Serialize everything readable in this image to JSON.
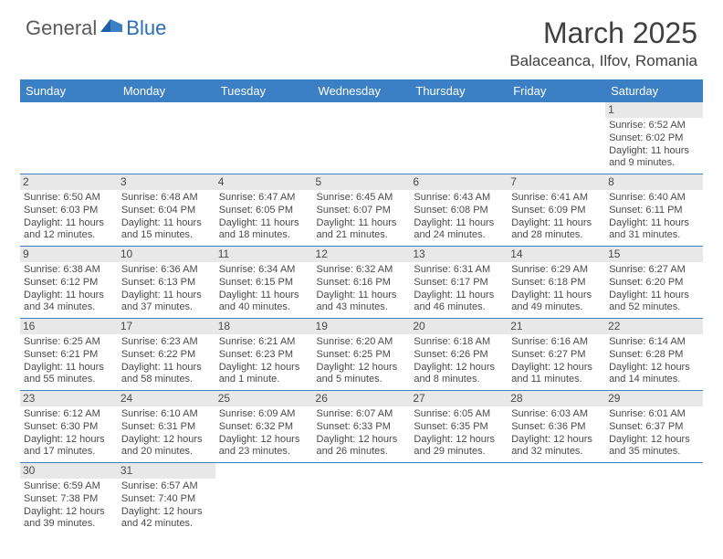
{
  "logo": {
    "general": "General",
    "blue": "Blue"
  },
  "title": "March 2025",
  "location": "Balaceanca, Ilfov, Romania",
  "header_bg": "#3b7fc4",
  "header_fg": "#ffffff",
  "divider_color": "#3b7fc4",
  "daynum_bg": "#e8e8e8",
  "text_color": "#4a4a4a",
  "days": [
    "Sunday",
    "Monday",
    "Tuesday",
    "Wednesday",
    "Thursday",
    "Friday",
    "Saturday"
  ],
  "weeks": [
    [
      null,
      null,
      null,
      null,
      null,
      null,
      {
        "n": "1",
        "sr": "Sunrise: 6:52 AM",
        "ss": "Sunset: 6:02 PM",
        "d1": "Daylight: 11 hours",
        "d2": "and 9 minutes."
      }
    ],
    [
      {
        "n": "2",
        "sr": "Sunrise: 6:50 AM",
        "ss": "Sunset: 6:03 PM",
        "d1": "Daylight: 11 hours",
        "d2": "and 12 minutes."
      },
      {
        "n": "3",
        "sr": "Sunrise: 6:48 AM",
        "ss": "Sunset: 6:04 PM",
        "d1": "Daylight: 11 hours",
        "d2": "and 15 minutes."
      },
      {
        "n": "4",
        "sr": "Sunrise: 6:47 AM",
        "ss": "Sunset: 6:05 PM",
        "d1": "Daylight: 11 hours",
        "d2": "and 18 minutes."
      },
      {
        "n": "5",
        "sr": "Sunrise: 6:45 AM",
        "ss": "Sunset: 6:07 PM",
        "d1": "Daylight: 11 hours",
        "d2": "and 21 minutes."
      },
      {
        "n": "6",
        "sr": "Sunrise: 6:43 AM",
        "ss": "Sunset: 6:08 PM",
        "d1": "Daylight: 11 hours",
        "d2": "and 24 minutes."
      },
      {
        "n": "7",
        "sr": "Sunrise: 6:41 AM",
        "ss": "Sunset: 6:09 PM",
        "d1": "Daylight: 11 hours",
        "d2": "and 28 minutes."
      },
      {
        "n": "8",
        "sr": "Sunrise: 6:40 AM",
        "ss": "Sunset: 6:11 PM",
        "d1": "Daylight: 11 hours",
        "d2": "and 31 minutes."
      }
    ],
    [
      {
        "n": "9",
        "sr": "Sunrise: 6:38 AM",
        "ss": "Sunset: 6:12 PM",
        "d1": "Daylight: 11 hours",
        "d2": "and 34 minutes."
      },
      {
        "n": "10",
        "sr": "Sunrise: 6:36 AM",
        "ss": "Sunset: 6:13 PM",
        "d1": "Daylight: 11 hours",
        "d2": "and 37 minutes."
      },
      {
        "n": "11",
        "sr": "Sunrise: 6:34 AM",
        "ss": "Sunset: 6:15 PM",
        "d1": "Daylight: 11 hours",
        "d2": "and 40 minutes."
      },
      {
        "n": "12",
        "sr": "Sunrise: 6:32 AM",
        "ss": "Sunset: 6:16 PM",
        "d1": "Daylight: 11 hours",
        "d2": "and 43 minutes."
      },
      {
        "n": "13",
        "sr": "Sunrise: 6:31 AM",
        "ss": "Sunset: 6:17 PM",
        "d1": "Daylight: 11 hours",
        "d2": "and 46 minutes."
      },
      {
        "n": "14",
        "sr": "Sunrise: 6:29 AM",
        "ss": "Sunset: 6:18 PM",
        "d1": "Daylight: 11 hours",
        "d2": "and 49 minutes."
      },
      {
        "n": "15",
        "sr": "Sunrise: 6:27 AM",
        "ss": "Sunset: 6:20 PM",
        "d1": "Daylight: 11 hours",
        "d2": "and 52 minutes."
      }
    ],
    [
      {
        "n": "16",
        "sr": "Sunrise: 6:25 AM",
        "ss": "Sunset: 6:21 PM",
        "d1": "Daylight: 11 hours",
        "d2": "and 55 minutes."
      },
      {
        "n": "17",
        "sr": "Sunrise: 6:23 AM",
        "ss": "Sunset: 6:22 PM",
        "d1": "Daylight: 11 hours",
        "d2": "and 58 minutes."
      },
      {
        "n": "18",
        "sr": "Sunrise: 6:21 AM",
        "ss": "Sunset: 6:23 PM",
        "d1": "Daylight: 12 hours",
        "d2": "and 1 minute."
      },
      {
        "n": "19",
        "sr": "Sunrise: 6:20 AM",
        "ss": "Sunset: 6:25 PM",
        "d1": "Daylight: 12 hours",
        "d2": "and 5 minutes."
      },
      {
        "n": "20",
        "sr": "Sunrise: 6:18 AM",
        "ss": "Sunset: 6:26 PM",
        "d1": "Daylight: 12 hours",
        "d2": "and 8 minutes."
      },
      {
        "n": "21",
        "sr": "Sunrise: 6:16 AM",
        "ss": "Sunset: 6:27 PM",
        "d1": "Daylight: 12 hours",
        "d2": "and 11 minutes."
      },
      {
        "n": "22",
        "sr": "Sunrise: 6:14 AM",
        "ss": "Sunset: 6:28 PM",
        "d1": "Daylight: 12 hours",
        "d2": "and 14 minutes."
      }
    ],
    [
      {
        "n": "23",
        "sr": "Sunrise: 6:12 AM",
        "ss": "Sunset: 6:30 PM",
        "d1": "Daylight: 12 hours",
        "d2": "and 17 minutes."
      },
      {
        "n": "24",
        "sr": "Sunrise: 6:10 AM",
        "ss": "Sunset: 6:31 PM",
        "d1": "Daylight: 12 hours",
        "d2": "and 20 minutes."
      },
      {
        "n": "25",
        "sr": "Sunrise: 6:09 AM",
        "ss": "Sunset: 6:32 PM",
        "d1": "Daylight: 12 hours",
        "d2": "and 23 minutes."
      },
      {
        "n": "26",
        "sr": "Sunrise: 6:07 AM",
        "ss": "Sunset: 6:33 PM",
        "d1": "Daylight: 12 hours",
        "d2": "and 26 minutes."
      },
      {
        "n": "27",
        "sr": "Sunrise: 6:05 AM",
        "ss": "Sunset: 6:35 PM",
        "d1": "Daylight: 12 hours",
        "d2": "and 29 minutes."
      },
      {
        "n": "28",
        "sr": "Sunrise: 6:03 AM",
        "ss": "Sunset: 6:36 PM",
        "d1": "Daylight: 12 hours",
        "d2": "and 32 minutes."
      },
      {
        "n": "29",
        "sr": "Sunrise: 6:01 AM",
        "ss": "Sunset: 6:37 PM",
        "d1": "Daylight: 12 hours",
        "d2": "and 35 minutes."
      }
    ],
    [
      {
        "n": "30",
        "sr": "Sunrise: 6:59 AM",
        "ss": "Sunset: 7:38 PM",
        "d1": "Daylight: 12 hours",
        "d2": "and 39 minutes."
      },
      {
        "n": "31",
        "sr": "Sunrise: 6:57 AM",
        "ss": "Sunset: 7:40 PM",
        "d1": "Daylight: 12 hours",
        "d2": "and 42 minutes."
      },
      null,
      null,
      null,
      null,
      null
    ]
  ]
}
